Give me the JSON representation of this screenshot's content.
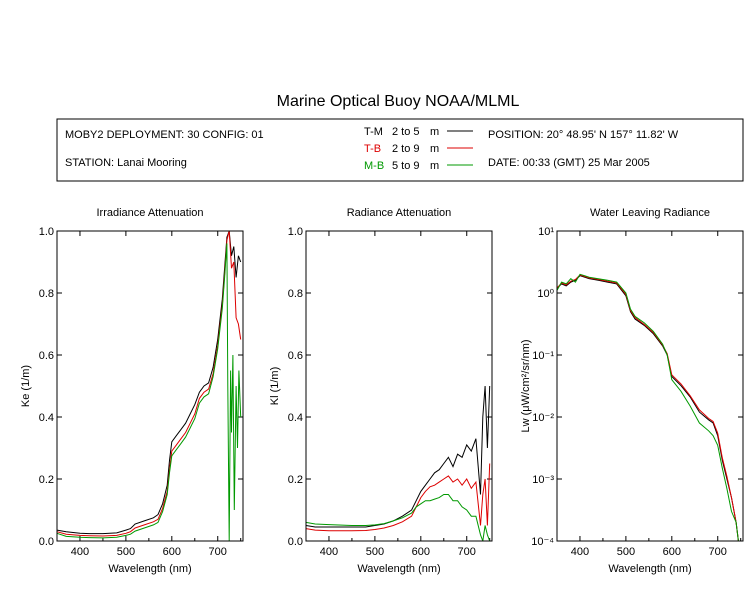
{
  "title": "Marine Optical Buoy NOAA/MLML",
  "info_box": {
    "deployment": "MOBY2 DEPLOYMENT: 30 CONFIG: 01",
    "station": "STATION: Lanai Mooring",
    "position": "POSITION: 20° 48.95' N   157° 11.82' W",
    "date": "DATE: 00:33 (GMT) 25 Mar 2005"
  },
  "legend": [
    {
      "code": "T-M",
      "range": "2 to 5",
      "unit": "m",
      "color": "#000000"
    },
    {
      "code": "T-B",
      "range": "2 to 9",
      "unit": "m",
      "color": "#dd0000"
    },
    {
      "code": "M-B",
      "range": "5 to 9",
      "unit": "m",
      "color": "#009900"
    }
  ],
  "chart_data": [
    {
      "type": "line",
      "title": "Irradiance Attenuation",
      "xlabel": "Wavelength (nm)",
      "ylabel": "Ke  (1/m)",
      "xlim": [
        350,
        755
      ],
      "ylim": [
        0,
        1.0
      ],
      "xticks": [
        "400",
        "500",
        "600",
        "700"
      ],
      "yticks": [
        "0.0",
        "0.2",
        "0.4",
        "0.6",
        "0.8",
        "1.0"
      ],
      "series": [
        {
          "name": "T-M",
          "color": "#000000",
          "x": [
            350,
            370,
            400,
            420,
            450,
            480,
            500,
            510,
            520,
            540,
            560,
            570,
            580,
            590,
            595,
            600,
            610,
            620,
            630,
            640,
            650,
            660,
            670,
            680,
            690,
            700,
            710,
            715,
            720,
            725,
            730,
            735,
            740,
            745,
            750
          ],
          "y": [
            0.035,
            0.03,
            0.025,
            0.024,
            0.024,
            0.026,
            0.035,
            0.04,
            0.055,
            0.065,
            0.075,
            0.085,
            0.12,
            0.18,
            0.26,
            0.32,
            0.34,
            0.36,
            0.38,
            0.41,
            0.44,
            0.48,
            0.5,
            0.51,
            0.56,
            0.65,
            0.78,
            0.88,
            0.98,
            1.0,
            0.92,
            0.95,
            0.85,
            0.92,
            0.9
          ]
        },
        {
          "name": "T-B",
          "color": "#dd0000",
          "x": [
            350,
            370,
            400,
            420,
            450,
            480,
            500,
            510,
            520,
            540,
            560,
            570,
            580,
            590,
            595,
            600,
            610,
            620,
            630,
            640,
            650,
            660,
            670,
            680,
            690,
            700,
            710,
            715,
            720,
            725,
            730,
            735,
            740,
            745,
            750
          ],
          "y": [
            0.03,
            0.022,
            0.018,
            0.017,
            0.016,
            0.018,
            0.025,
            0.03,
            0.042,
            0.052,
            0.062,
            0.07,
            0.105,
            0.16,
            0.23,
            0.29,
            0.31,
            0.33,
            0.35,
            0.38,
            0.41,
            0.46,
            0.48,
            0.49,
            0.54,
            0.63,
            0.76,
            0.86,
            0.97,
            1.0,
            0.88,
            0.9,
            0.72,
            0.7,
            0.65
          ]
        },
        {
          "name": "M-B",
          "color": "#009900",
          "x": [
            350,
            370,
            400,
            420,
            450,
            480,
            500,
            510,
            520,
            540,
            560,
            570,
            580,
            590,
            595,
            600,
            610,
            620,
            630,
            640,
            650,
            660,
            670,
            680,
            690,
            700,
            710,
            715,
            720,
            722,
            725,
            728,
            730,
            733,
            736,
            740,
            743,
            746,
            750
          ],
          "y": [
            0.025,
            0.015,
            0.012,
            0.011,
            0.01,
            0.012,
            0.018,
            0.022,
            0.032,
            0.042,
            0.052,
            0.06,
            0.095,
            0.15,
            0.22,
            0.275,
            0.295,
            0.315,
            0.335,
            0.365,
            0.395,
            0.445,
            0.465,
            0.475,
            0.53,
            0.62,
            0.75,
            0.85,
            0.96,
            0.5,
            0.0,
            0.55,
            0.35,
            0.6,
            0.1,
            0.5,
            0.3,
            0.55,
            0.4
          ]
        }
      ]
    },
    {
      "type": "line",
      "title": "Radiance Attenuation",
      "xlabel": "Wavelength (nm)",
      "ylabel": "Kl  (1/m)",
      "xlim": [
        350,
        755
      ],
      "ylim": [
        0,
        1.0
      ],
      "xticks": [
        "400",
        "500",
        "600",
        "700"
      ],
      "yticks": [
        "0.0",
        "0.2",
        "0.4",
        "0.6",
        "0.8",
        "1.0"
      ],
      "series": [
        {
          "name": "T-M",
          "color": "#000000",
          "x": [
            350,
            370,
            400,
            450,
            480,
            500,
            520,
            540,
            560,
            580,
            590,
            600,
            610,
            620,
            630,
            640,
            650,
            660,
            670,
            680,
            690,
            700,
            710,
            720,
            730,
            735,
            740,
            745,
            750
          ],
          "y": [
            0.05,
            0.045,
            0.045,
            0.045,
            0.045,
            0.05,
            0.055,
            0.065,
            0.08,
            0.1,
            0.13,
            0.16,
            0.18,
            0.2,
            0.22,
            0.23,
            0.25,
            0.27,
            0.24,
            0.28,
            0.27,
            0.31,
            0.29,
            0.33,
            0.15,
            0.4,
            0.5,
            0.3,
            0.5
          ]
        },
        {
          "name": "T-B",
          "color": "#dd0000",
          "x": [
            350,
            370,
            400,
            450,
            480,
            500,
            520,
            540,
            560,
            580,
            590,
            600,
            610,
            620,
            630,
            640,
            650,
            660,
            670,
            680,
            690,
            700,
            710,
            720,
            730,
            735,
            740,
            745,
            750
          ],
          "y": [
            0.04,
            0.035,
            0.033,
            0.033,
            0.034,
            0.037,
            0.042,
            0.05,
            0.062,
            0.08,
            0.11,
            0.14,
            0.16,
            0.175,
            0.18,
            0.19,
            0.2,
            0.21,
            0.19,
            0.2,
            0.18,
            0.2,
            0.17,
            0.19,
            0.05,
            0.15,
            0.2,
            0.05,
            0.25
          ]
        },
        {
          "name": "M-B",
          "color": "#009900",
          "x": [
            350,
            370,
            400,
            450,
            480,
            500,
            520,
            540,
            560,
            580,
            590,
            600,
            610,
            620,
            630,
            640,
            650,
            660,
            670,
            680,
            690,
            700,
            710,
            720,
            730,
            735,
            740,
            745,
            750
          ],
          "y": [
            0.06,
            0.055,
            0.053,
            0.05,
            0.05,
            0.052,
            0.056,
            0.065,
            0.075,
            0.09,
            0.11,
            0.12,
            0.13,
            0.13,
            0.135,
            0.14,
            0.15,
            0.15,
            0.13,
            0.13,
            0.11,
            0.1,
            0.08,
            0.08,
            0.02,
            0.0,
            0.05,
            0.02,
            0.0
          ]
        }
      ]
    },
    {
      "type": "line",
      "title": "Water Leaving Radiance",
      "xlabel": "Wavelength (nm)",
      "ylabel": "Lw  (μW/cm²/sr/nm)",
      "scale_y": "log",
      "xlim": [
        350,
        755
      ],
      "ylim": [
        0.0001,
        10
      ],
      "xticks": [
        "400",
        "500",
        "600",
        "700"
      ],
      "yticks": [
        "10⁻⁴",
        "10⁻³",
        "10⁻²",
        "10⁻¹",
        "10⁰",
        "10¹"
      ],
      "series": [
        {
          "name": "T-M",
          "color": "#000000",
          "x": [
            350,
            360,
            370,
            380,
            390,
            400,
            410,
            420,
            440,
            460,
            480,
            500,
            510,
            520,
            540,
            560,
            580,
            590,
            600,
            620,
            640,
            660,
            680,
            690,
            700,
            710,
            720,
            730,
            740,
            745,
            750
          ],
          "y": [
            1.2,
            1.4,
            1.3,
            1.5,
            1.6,
            1.9,
            1.8,
            1.7,
            1.6,
            1.5,
            1.4,
            0.9,
            0.5,
            0.38,
            0.3,
            0.22,
            0.14,
            0.1,
            0.045,
            0.032,
            0.021,
            0.012,
            0.009,
            0.008,
            0.005,
            0.002,
            0.001,
            0.0005,
            0.0002,
            0.0001,
            8e-05
          ]
        },
        {
          "name": "T-B",
          "color": "#dd0000",
          "x": [
            350,
            360,
            370,
            380,
            390,
            400,
            410,
            420,
            440,
            460,
            480,
            500,
            510,
            520,
            540,
            560,
            580,
            590,
            600,
            620,
            640,
            660,
            680,
            690,
            700,
            710,
            720,
            730,
            740,
            745,
            750
          ],
          "y": [
            1.2,
            1.45,
            1.35,
            1.55,
            1.65,
            1.95,
            1.85,
            1.75,
            1.65,
            1.55,
            1.45,
            0.95,
            0.52,
            0.4,
            0.31,
            0.23,
            0.145,
            0.105,
            0.048,
            0.034,
            0.022,
            0.013,
            0.0095,
            0.0085,
            0.0055,
            0.0022,
            0.0011,
            0.0005,
            0.0002,
            0.0001,
            8e-05
          ]
        },
        {
          "name": "M-B",
          "color": "#009900",
          "x": [
            350,
            360,
            370,
            380,
            390,
            400,
            410,
            420,
            440,
            460,
            480,
            500,
            510,
            520,
            540,
            560,
            580,
            590,
            600,
            620,
            640,
            660,
            680,
            690,
            700,
            710,
            720,
            730,
            740,
            745,
            750
          ],
          "y": [
            1.1,
            1.5,
            1.4,
            1.7,
            1.5,
            2.0,
            1.9,
            1.8,
            1.7,
            1.6,
            1.5,
            1.0,
            0.55,
            0.42,
            0.33,
            0.24,
            0.15,
            0.1,
            0.04,
            0.026,
            0.015,
            0.008,
            0.006,
            0.005,
            0.0035,
            0.0015,
            0.0007,
            0.0003,
            0.0002,
            0.0001,
            8e-05
          ]
        }
      ]
    }
  ]
}
